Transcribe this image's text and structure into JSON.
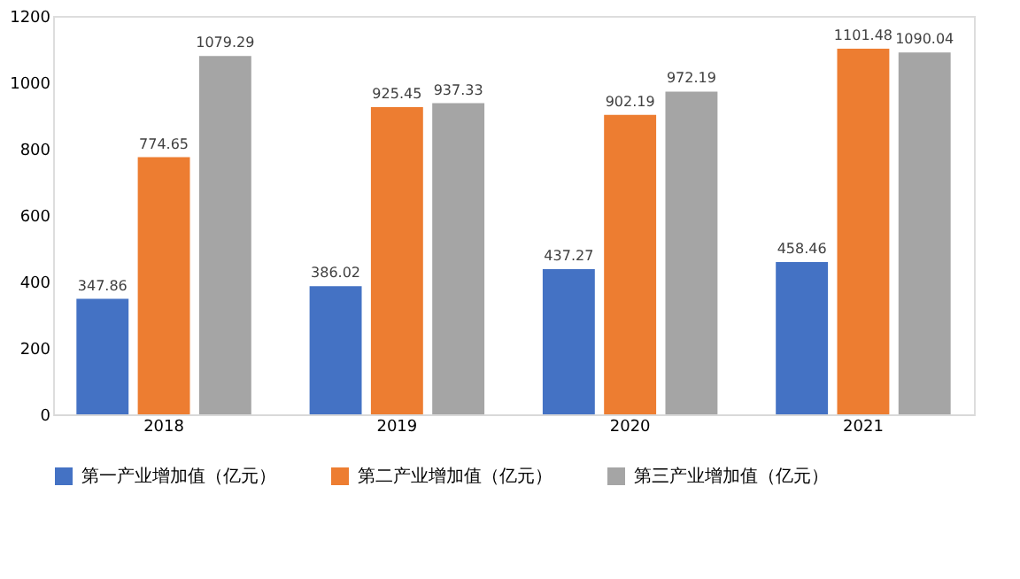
{
  "chart_data": {
    "type": "bar",
    "categories": [
      "2018",
      "2019",
      "2020",
      "2021"
    ],
    "series": [
      {
        "name": "第一产业增加值（亿元）",
        "color": "#4472c4",
        "values": [
          347.86,
          386.02,
          437.27,
          458.46
        ]
      },
      {
        "name": "第二产业增加值（亿元）",
        "color": "#ed7d31",
        "values": [
          774.65,
          925.45,
          902.19,
          1101.48
        ]
      },
      {
        "name": "第三产业增加值（亿元）",
        "color": "#a5a5a5",
        "values": [
          1079.29,
          937.33,
          972.19,
          1090.04
        ]
      }
    ],
    "ylim": [
      0,
      1200
    ],
    "yticks": [
      0,
      200,
      400,
      600,
      800,
      1000,
      1200
    ],
    "grid": false,
    "legend": "bottom",
    "data_labels": true
  }
}
